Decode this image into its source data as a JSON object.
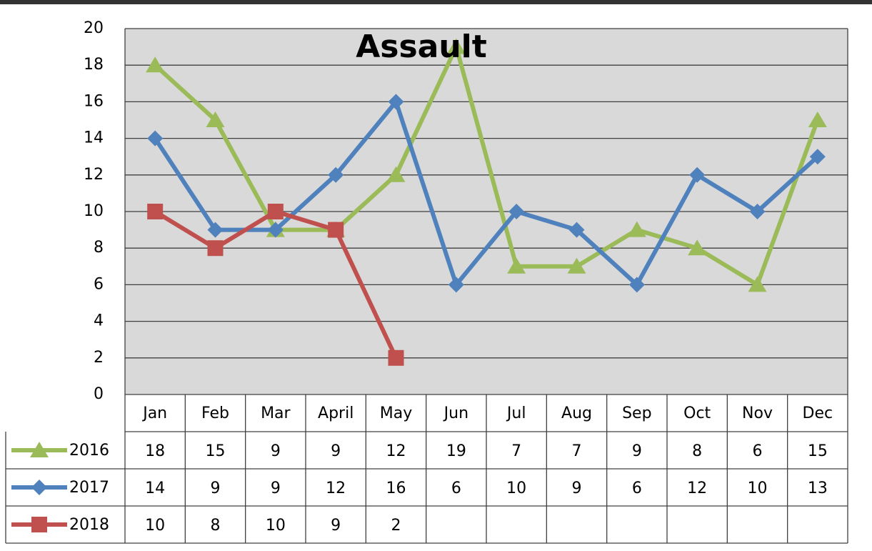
{
  "chart_data": {
    "type": "line",
    "title": "Assault",
    "categories": [
      "Jan",
      "Feb",
      "Mar",
      "April",
      "May",
      "Jun",
      "Jul",
      "Aug",
      "Sep",
      "Oct",
      "Nov",
      "Dec"
    ],
    "series": [
      {
        "name": "2016",
        "color": "#9bbb59",
        "marker": "triangle",
        "values": [
          18,
          15,
          9,
          9,
          12,
          19,
          7,
          7,
          9,
          8,
          6,
          15
        ]
      },
      {
        "name": "2017",
        "color": "#4f81bd",
        "marker": "diamond",
        "values": [
          14,
          9,
          9,
          12,
          16,
          6,
          10,
          9,
          6,
          12,
          10,
          13
        ]
      },
      {
        "name": "2018",
        "color": "#c0504d",
        "marker": "square",
        "values": [
          10,
          8,
          10,
          9,
          2,
          null,
          null,
          null,
          null,
          null,
          null,
          null
        ]
      }
    ],
    "ylim": [
      0,
      20
    ],
    "yticks": [
      0,
      2,
      4,
      6,
      8,
      10,
      12,
      14,
      16,
      18,
      20
    ],
    "grid": true,
    "data_table": true
  }
}
